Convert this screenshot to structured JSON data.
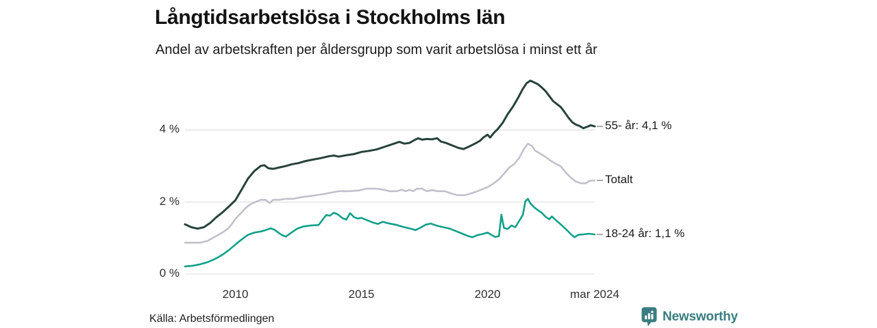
{
  "header": {
    "title": "Långtidsarbetslösa i Stockholms län",
    "subtitle": "Andel av arbetskraften per åldersgrupp som varit arbetslösa i minst ett år"
  },
  "footer": {
    "source": "Källa: Arbetsförmedlingen",
    "brand_name": "Newsworthy",
    "brand_color": "#3a7d80",
    "brand_icon": "bar-chart-bubble-icon"
  },
  "colors": {
    "grid": "#e2e2e2",
    "leader_dash": "#8e8e8e",
    "series_55": "#27423b",
    "series_total": "#c2c0cc",
    "series_1824": "#10a089"
  },
  "chart_data": {
    "type": "line",
    "title": "Långtidsarbetslösa i Stockholms län",
    "subtitle": "Andel av arbetskraften per åldersgrupp som varit arbetslösa i minst ett år",
    "grid": "horizontal-only",
    "legend_position": "right-end-labels",
    "x_axis": {
      "range": [
        2008.0,
        2024.25
      ],
      "ticks": [
        {
          "label": "2010",
          "value": 2010
        },
        {
          "label": "2015",
          "value": 2015
        },
        {
          "label": "2020",
          "value": 2020
        },
        {
          "label": "mar 2024",
          "value": 2024.25
        }
      ]
    },
    "y_axis": {
      "unit": "%",
      "range": [
        0,
        5.75
      ],
      "ticks": [
        {
          "label": "0 %",
          "value": 0
        },
        {
          "label": "2 %",
          "value": 2
        },
        {
          "label": "4 %",
          "value": 4
        }
      ]
    },
    "series": [
      {
        "name": "55- år",
        "label": "55- år: 4,1 %",
        "end_value": 4.1,
        "color": "#27423b",
        "stroke_width": 3,
        "points": [
          [
            2008.0,
            1.38
          ],
          [
            2008.25,
            1.3
          ],
          [
            2008.5,
            1.26
          ],
          [
            2008.75,
            1.3
          ],
          [
            2009.0,
            1.42
          ],
          [
            2009.25,
            1.58
          ],
          [
            2009.5,
            1.72
          ],
          [
            2009.75,
            1.88
          ],
          [
            2010.0,
            2.05
          ],
          [
            2010.25,
            2.35
          ],
          [
            2010.5,
            2.65
          ],
          [
            2010.75,
            2.86
          ],
          [
            2011.0,
            3.0
          ],
          [
            2011.15,
            3.02
          ],
          [
            2011.3,
            2.94
          ],
          [
            2011.5,
            2.92
          ],
          [
            2011.75,
            2.96
          ],
          [
            2012.0,
            3.0
          ],
          [
            2012.25,
            3.05
          ],
          [
            2012.5,
            3.08
          ],
          [
            2012.8,
            3.14
          ],
          [
            2013.1,
            3.18
          ],
          [
            2013.4,
            3.22
          ],
          [
            2013.7,
            3.27
          ],
          [
            2013.9,
            3.29
          ],
          [
            2014.1,
            3.26
          ],
          [
            2014.4,
            3.3
          ],
          [
            2014.7,
            3.33
          ],
          [
            2015.0,
            3.39
          ],
          [
            2015.3,
            3.42
          ],
          [
            2015.6,
            3.46
          ],
          [
            2015.9,
            3.53
          ],
          [
            2016.2,
            3.6
          ],
          [
            2016.5,
            3.67
          ],
          [
            2016.7,
            3.62
          ],
          [
            2016.9,
            3.64
          ],
          [
            2017.1,
            3.72
          ],
          [
            2017.25,
            3.77
          ],
          [
            2017.4,
            3.73
          ],
          [
            2017.6,
            3.75
          ],
          [
            2017.8,
            3.74
          ],
          [
            2018.0,
            3.77
          ],
          [
            2018.15,
            3.68
          ],
          [
            2018.35,
            3.64
          ],
          [
            2018.6,
            3.57
          ],
          [
            2018.85,
            3.5
          ],
          [
            2019.05,
            3.47
          ],
          [
            2019.3,
            3.55
          ],
          [
            2019.5,
            3.62
          ],
          [
            2019.7,
            3.7
          ],
          [
            2019.85,
            3.8
          ],
          [
            2020.0,
            3.87
          ],
          [
            2020.1,
            3.79
          ],
          [
            2020.25,
            3.92
          ],
          [
            2020.4,
            4.02
          ],
          [
            2020.6,
            4.2
          ],
          [
            2020.8,
            4.44
          ],
          [
            2021.0,
            4.64
          ],
          [
            2021.2,
            4.88
          ],
          [
            2021.4,
            5.14
          ],
          [
            2021.55,
            5.3
          ],
          [
            2021.7,
            5.37
          ],
          [
            2021.85,
            5.32
          ],
          [
            2022.0,
            5.27
          ],
          [
            2022.15,
            5.18
          ],
          [
            2022.3,
            5.08
          ],
          [
            2022.45,
            4.94
          ],
          [
            2022.6,
            4.8
          ],
          [
            2022.75,
            4.72
          ],
          [
            2022.9,
            4.64
          ],
          [
            2023.05,
            4.5
          ],
          [
            2023.2,
            4.35
          ],
          [
            2023.35,
            4.22
          ],
          [
            2023.5,
            4.15
          ],
          [
            2023.65,
            4.11
          ],
          [
            2023.8,
            4.05
          ],
          [
            2023.95,
            4.09
          ],
          [
            2024.1,
            4.13
          ],
          [
            2024.25,
            4.1
          ]
        ]
      },
      {
        "name": "Totalt",
        "label": "Totalt",
        "end_value": 2.6,
        "color": "#c2c0cc",
        "stroke_width": 2.6,
        "points": [
          [
            2008.0,
            0.87
          ],
          [
            2008.3,
            0.87
          ],
          [
            2008.6,
            0.87
          ],
          [
            2008.9,
            0.92
          ],
          [
            2009.1,
            1.0
          ],
          [
            2009.3,
            1.08
          ],
          [
            2009.5,
            1.16
          ],
          [
            2009.7,
            1.26
          ],
          [
            2009.85,
            1.38
          ],
          [
            2010.0,
            1.53
          ],
          [
            2010.2,
            1.68
          ],
          [
            2010.4,
            1.83
          ],
          [
            2010.6,
            1.94
          ],
          [
            2010.8,
            2.0
          ],
          [
            2011.0,
            2.06
          ],
          [
            2011.2,
            2.06
          ],
          [
            2011.35,
            1.97
          ],
          [
            2011.5,
            2.06
          ],
          [
            2011.75,
            2.06
          ],
          [
            2012.0,
            2.09
          ],
          [
            2012.3,
            2.09
          ],
          [
            2012.6,
            2.13
          ],
          [
            2012.9,
            2.16
          ],
          [
            2013.2,
            2.19
          ],
          [
            2013.5,
            2.22
          ],
          [
            2013.8,
            2.26
          ],
          [
            2014.1,
            2.3
          ],
          [
            2014.5,
            2.3
          ],
          [
            2014.9,
            2.32
          ],
          [
            2015.2,
            2.37
          ],
          [
            2015.6,
            2.37
          ],
          [
            2015.9,
            2.34
          ],
          [
            2016.1,
            2.3
          ],
          [
            2016.4,
            2.3
          ],
          [
            2016.6,
            2.34
          ],
          [
            2016.75,
            2.3
          ],
          [
            2016.9,
            2.34
          ],
          [
            2017.05,
            2.3
          ],
          [
            2017.2,
            2.37
          ],
          [
            2017.4,
            2.37
          ],
          [
            2017.6,
            2.3
          ],
          [
            2017.8,
            2.33
          ],
          [
            2018.0,
            2.3
          ],
          [
            2018.3,
            2.3
          ],
          [
            2018.55,
            2.24
          ],
          [
            2018.8,
            2.19
          ],
          [
            2019.1,
            2.19
          ],
          [
            2019.35,
            2.24
          ],
          [
            2019.6,
            2.3
          ],
          [
            2019.85,
            2.37
          ],
          [
            2020.05,
            2.43
          ],
          [
            2020.25,
            2.52
          ],
          [
            2020.45,
            2.63
          ],
          [
            2020.65,
            2.78
          ],
          [
            2020.85,
            2.95
          ],
          [
            2021.05,
            3.05
          ],
          [
            2021.25,
            3.22
          ],
          [
            2021.45,
            3.48
          ],
          [
            2021.6,
            3.62
          ],
          [
            2021.75,
            3.56
          ],
          [
            2021.9,
            3.42
          ],
          [
            2022.1,
            3.34
          ],
          [
            2022.3,
            3.25
          ],
          [
            2022.5,
            3.15
          ],
          [
            2022.7,
            3.06
          ],
          [
            2022.9,
            2.99
          ],
          [
            2023.1,
            2.82
          ],
          [
            2023.3,
            2.68
          ],
          [
            2023.5,
            2.57
          ],
          [
            2023.7,
            2.52
          ],
          [
            2023.9,
            2.52
          ],
          [
            2024.05,
            2.59
          ],
          [
            2024.25,
            2.6
          ]
        ]
      },
      {
        "name": "18-24 år",
        "label": "18-24 år: 1,1 %",
        "end_value": 1.1,
        "color": "#10a089",
        "stroke_width": 2.6,
        "points": [
          [
            2008.0,
            0.21
          ],
          [
            2008.3,
            0.23
          ],
          [
            2008.6,
            0.27
          ],
          [
            2008.9,
            0.33
          ],
          [
            2009.1,
            0.39
          ],
          [
            2009.3,
            0.46
          ],
          [
            2009.5,
            0.54
          ],
          [
            2009.75,
            0.67
          ],
          [
            2010.0,
            0.82
          ],
          [
            2010.25,
            0.96
          ],
          [
            2010.5,
            1.09
          ],
          [
            2010.75,
            1.15
          ],
          [
            2011.0,
            1.18
          ],
          [
            2011.2,
            1.22
          ],
          [
            2011.4,
            1.27
          ],
          [
            2011.55,
            1.23
          ],
          [
            2011.7,
            1.15
          ],
          [
            2011.85,
            1.08
          ],
          [
            2012.0,
            1.04
          ],
          [
            2012.2,
            1.14
          ],
          [
            2012.45,
            1.26
          ],
          [
            2012.7,
            1.32
          ],
          [
            2013.0,
            1.35
          ],
          [
            2013.3,
            1.36
          ],
          [
            2013.45,
            1.5
          ],
          [
            2013.6,
            1.64
          ],
          [
            2013.75,
            1.62
          ],
          [
            2013.9,
            1.7
          ],
          [
            2014.05,
            1.66
          ],
          [
            2014.25,
            1.55
          ],
          [
            2014.4,
            1.51
          ],
          [
            2014.55,
            1.69
          ],
          [
            2014.7,
            1.58
          ],
          [
            2014.85,
            1.54
          ],
          [
            2015.0,
            1.56
          ],
          [
            2015.2,
            1.5
          ],
          [
            2015.45,
            1.43
          ],
          [
            2015.65,
            1.39
          ],
          [
            2015.85,
            1.45
          ],
          [
            2016.05,
            1.41
          ],
          [
            2016.35,
            1.37
          ],
          [
            2016.65,
            1.31
          ],
          [
            2016.95,
            1.26
          ],
          [
            2017.15,
            1.22
          ],
          [
            2017.35,
            1.29
          ],
          [
            2017.55,
            1.37
          ],
          [
            2017.75,
            1.4
          ],
          [
            2018.0,
            1.34
          ],
          [
            2018.25,
            1.3
          ],
          [
            2018.5,
            1.26
          ],
          [
            2018.75,
            1.19
          ],
          [
            2019.0,
            1.12
          ],
          [
            2019.2,
            1.06
          ],
          [
            2019.4,
            1.02
          ],
          [
            2019.6,
            1.08
          ],
          [
            2019.8,
            1.11
          ],
          [
            2020.0,
            1.15
          ],
          [
            2020.15,
            1.09
          ],
          [
            2020.3,
            1.03
          ],
          [
            2020.45,
            1.05
          ],
          [
            2020.55,
            1.65
          ],
          [
            2020.65,
            1.28
          ],
          [
            2020.8,
            1.25
          ],
          [
            2020.95,
            1.35
          ],
          [
            2021.1,
            1.3
          ],
          [
            2021.25,
            1.47
          ],
          [
            2021.4,
            1.64
          ],
          [
            2021.5,
            2.02
          ],
          [
            2021.6,
            2.09
          ],
          [
            2021.7,
            1.96
          ],
          [
            2021.85,
            1.85
          ],
          [
            2022.0,
            1.77
          ],
          [
            2022.15,
            1.7
          ],
          [
            2022.3,
            1.59
          ],
          [
            2022.45,
            1.52
          ],
          [
            2022.55,
            1.6
          ],
          [
            2022.7,
            1.5
          ],
          [
            2022.9,
            1.38
          ],
          [
            2023.1,
            1.25
          ],
          [
            2023.3,
            1.11
          ],
          [
            2023.45,
            1.02
          ],
          [
            2023.6,
            1.09
          ],
          [
            2023.8,
            1.1
          ],
          [
            2024.0,
            1.12
          ],
          [
            2024.25,
            1.1
          ]
        ]
      }
    ]
  }
}
